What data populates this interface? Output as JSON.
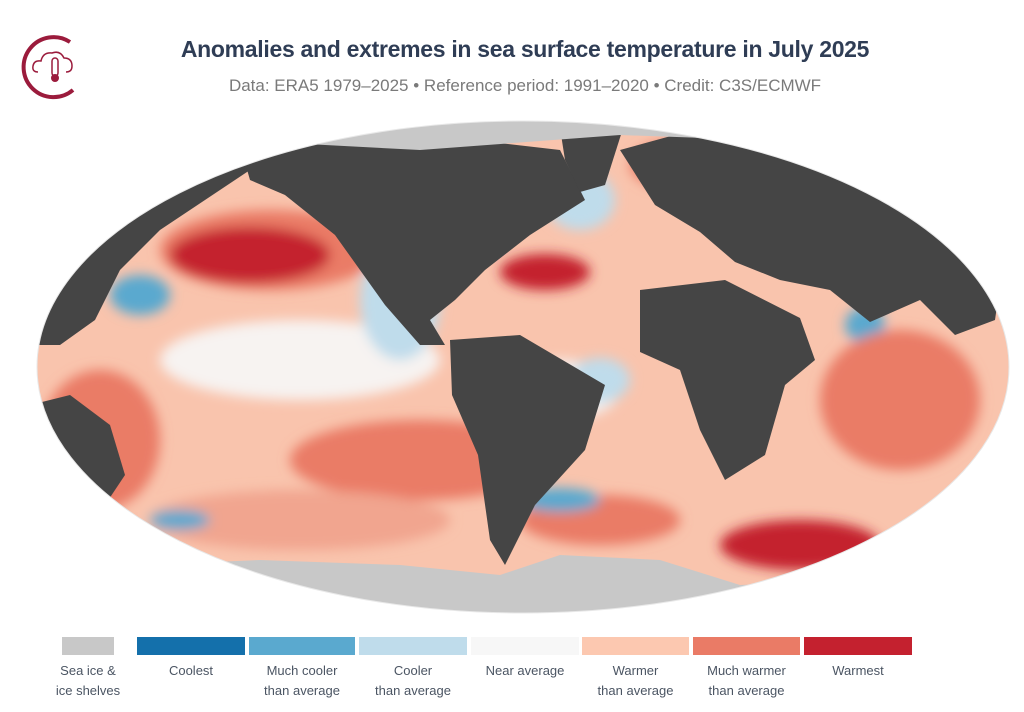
{
  "header": {
    "title": "Anomalies and extremes in sea surface temperature in July 2025",
    "subtitle": "Data: ERA5 1979–2025 • Reference period: 1991–2020 • Credit: C3S/ECMWF",
    "logo_icon": "cloud-thermometer-icon"
  },
  "map": {
    "projection": "Robinson",
    "colors": {
      "land": "#454545",
      "sea_ice": "#c8c8c8"
    }
  },
  "legend": {
    "items": [
      {
        "label_line1": "Sea ice &",
        "label_line2": "ice shelves",
        "color": "#c8c8c8"
      },
      {
        "label_line1": "Coolest",
        "label_line2": "",
        "color": "#1470ab"
      },
      {
        "label_line1": "Much cooler",
        "label_line2": "than average",
        "color": "#5aa9cf"
      },
      {
        "label_line1": "Cooler",
        "label_line2": "than average",
        "color": "#bfdceb"
      },
      {
        "label_line1": "Near average",
        "label_line2": "",
        "color": "#f7f7f7"
      },
      {
        "label_line1": "Warmer",
        "label_line2": "than average",
        "color": "#fcc8b0"
      },
      {
        "label_line1": "Much warmer",
        "label_line2": "than average",
        "color": "#ea7b66"
      },
      {
        "label_line1": "Warmest",
        "label_line2": "",
        "color": "#c4212f"
      }
    ]
  }
}
